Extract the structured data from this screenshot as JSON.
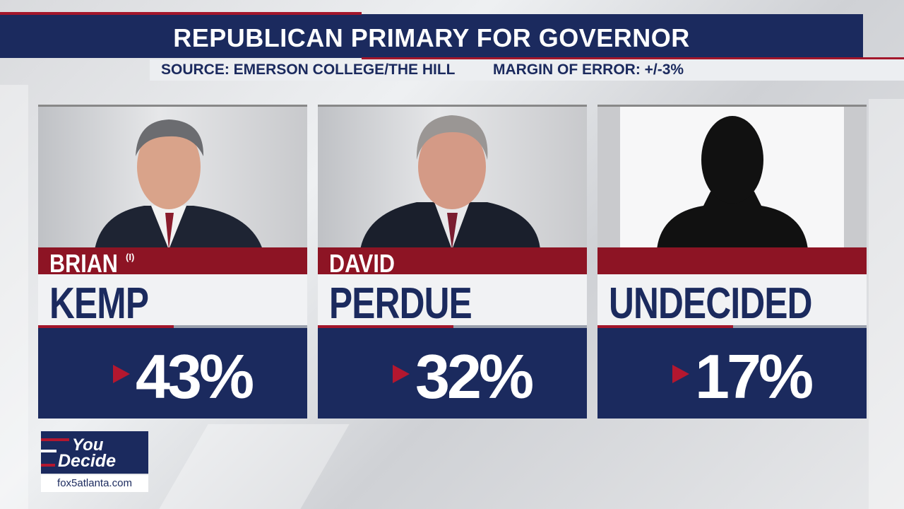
{
  "header": {
    "title": "REPUBLICAN PRIMARY FOR GOVERNOR",
    "source": "SOURCE: EMERSON COLLEGE/THE HILL",
    "margin": "MARGIN OF ERROR: +/-3%"
  },
  "candidates": [
    {
      "first_name": "BRIAN",
      "incumbent_mark": "(I)",
      "last_name": "KEMP",
      "percent": "43%"
    },
    {
      "first_name": "DAVID",
      "last_name": "PERDUE",
      "percent": "32%"
    },
    {
      "name": "UNDECIDED",
      "percent": "17%"
    }
  ],
  "logo": {
    "line1": "You",
    "line2": "Decide",
    "url": "fox5atlanta.com"
  }
}
